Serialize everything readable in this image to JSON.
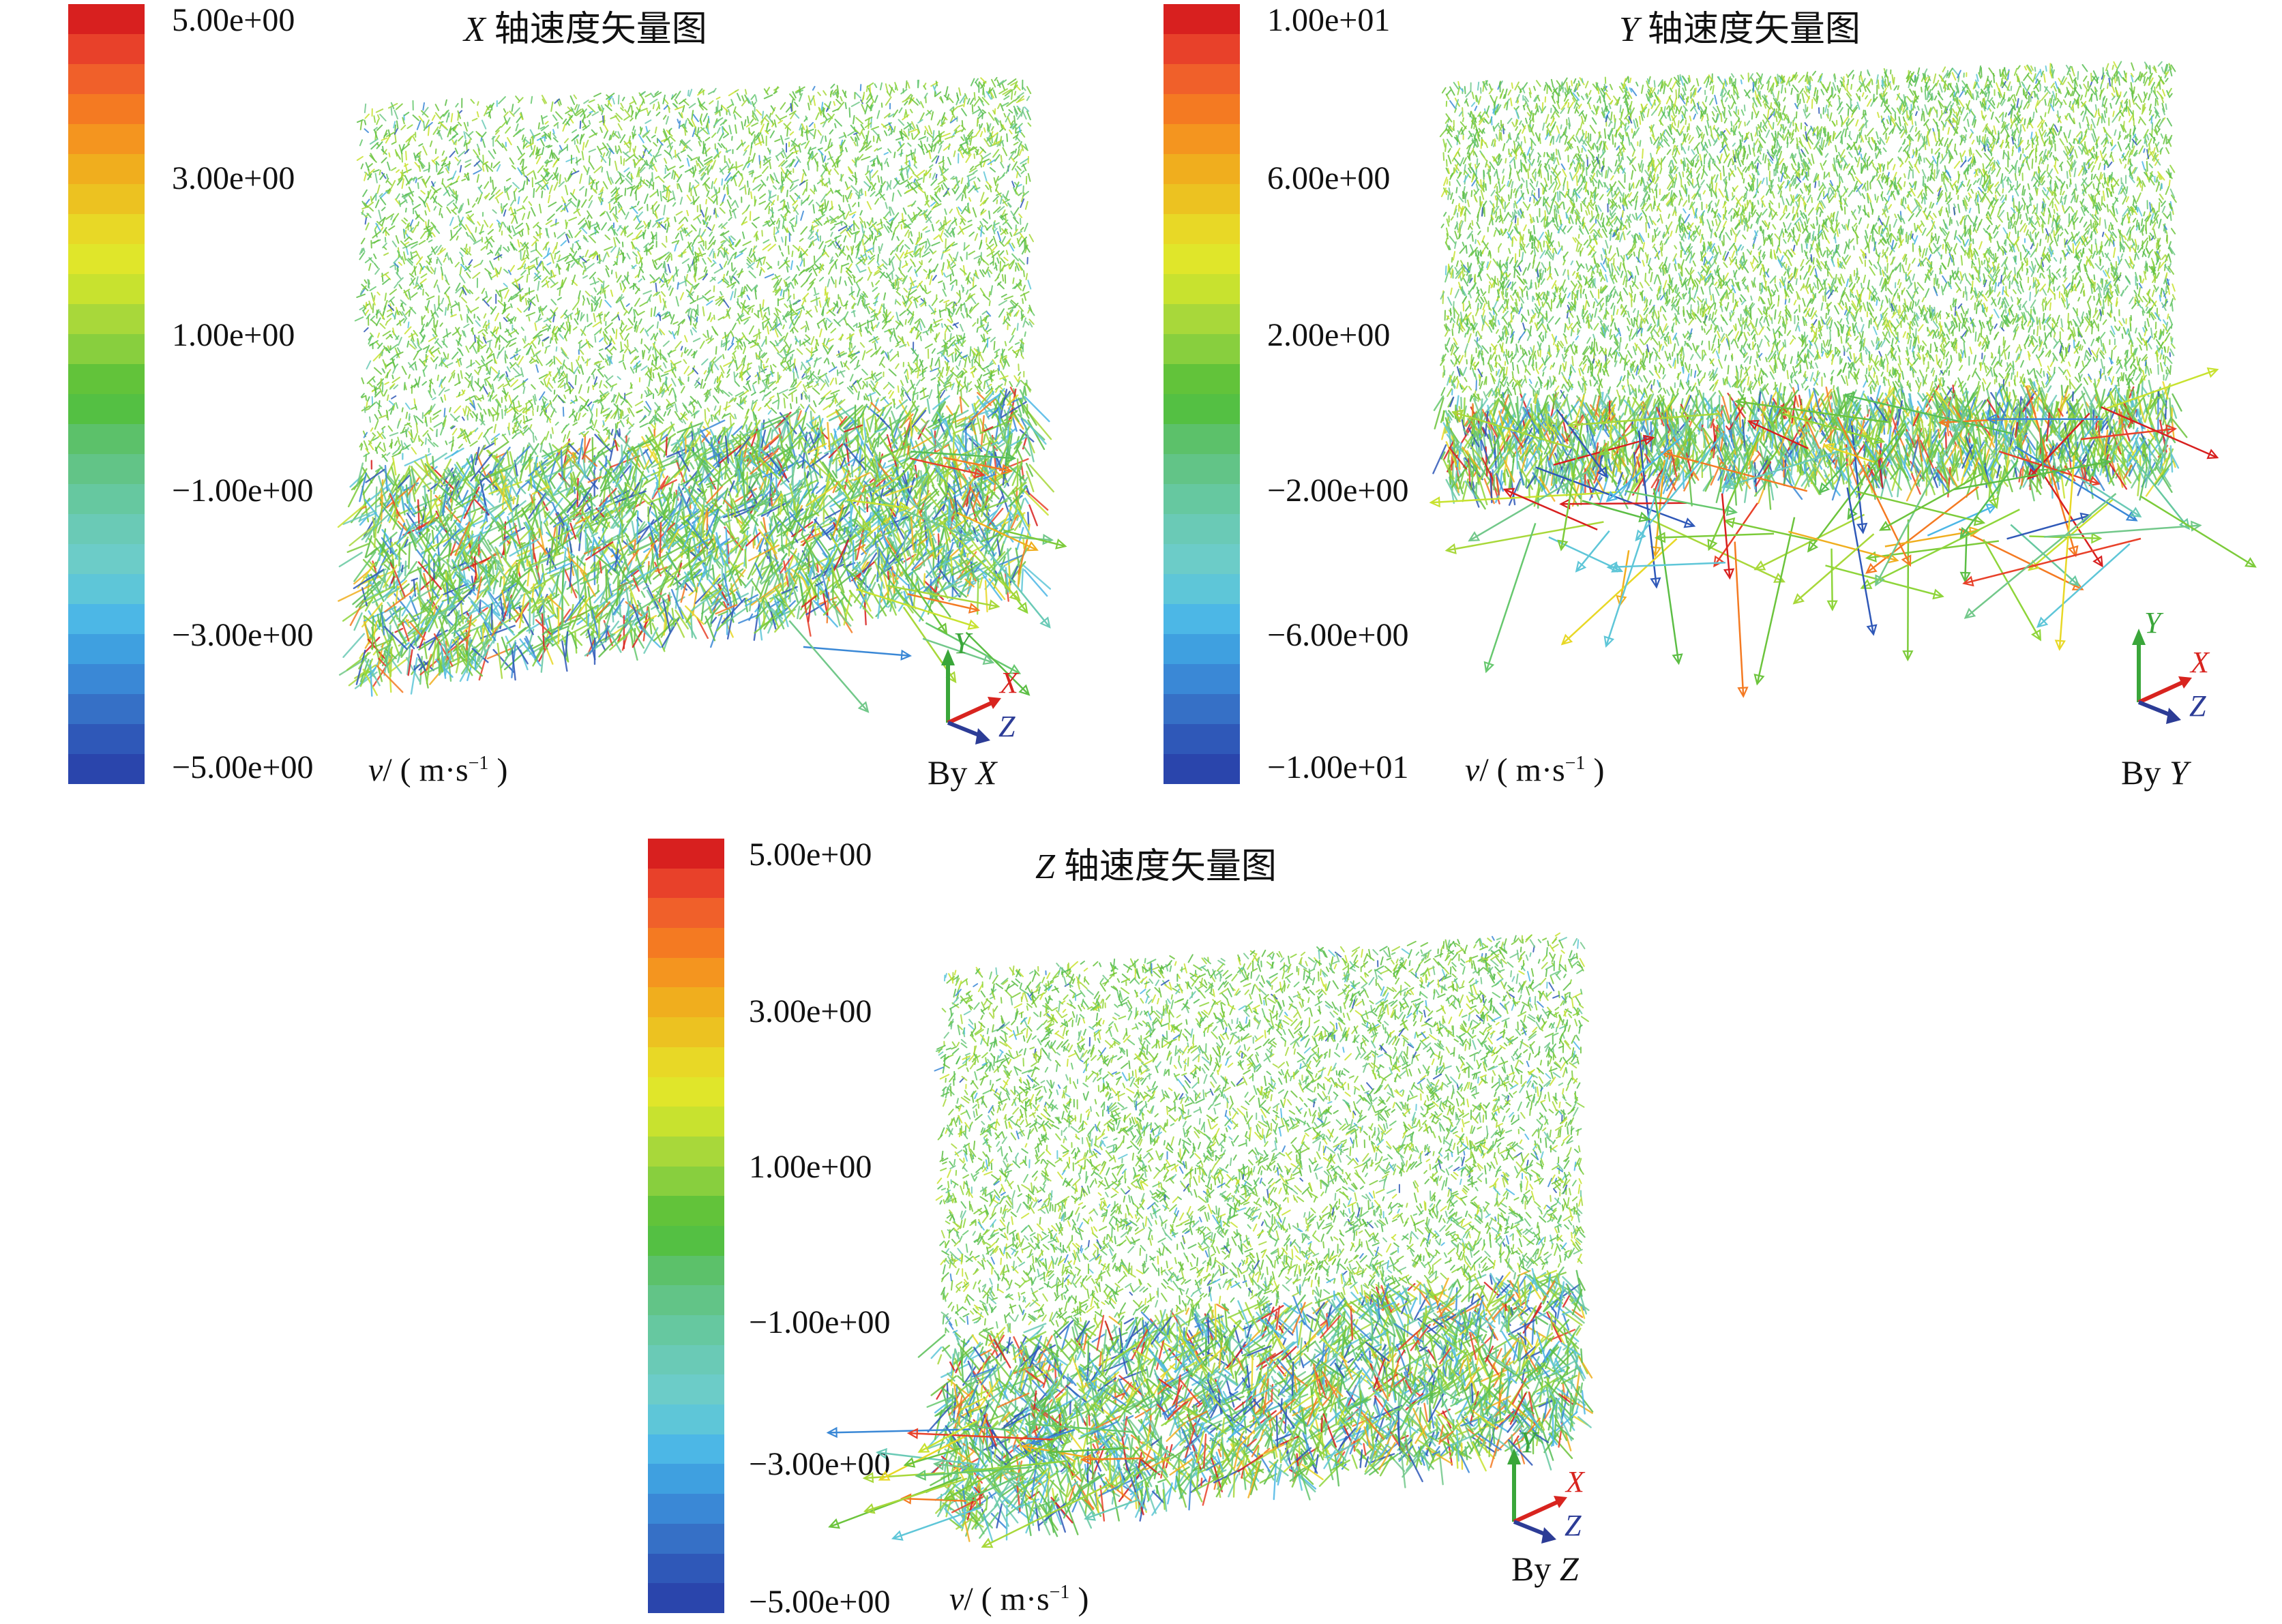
{
  "panels": [
    {
      "id": "x",
      "title_axis": "X",
      "title_text": "轴速度矢量图",
      "ticks": [
        "5.00e+00",
        "3.00e+00",
        "1.00e+00",
        "−1.00e+00",
        "−3.00e+00",
        "−5.00e+00"
      ],
      "unit_var": "v",
      "unit_text": "/ ( m·s",
      "unit_exp": "−1",
      "unit_close": " )",
      "by_prefix": "By ",
      "by_axis": "X"
    },
    {
      "id": "y",
      "title_axis": "Y",
      "title_text": "轴速度矢量图",
      "ticks": [
        "1.00e+01",
        "6.00e+00",
        "2.00e+00",
        "−2.00e+00",
        "−6.00e+00",
        "−1.00e+01"
      ],
      "unit_var": "v",
      "unit_text": "/ ( m·s",
      "unit_exp": "−1",
      "unit_close": " )",
      "by_prefix": "By ",
      "by_axis": "Y"
    },
    {
      "id": "z",
      "title_axis": "Z",
      "title_text": "轴速度矢量图",
      "ticks": [
        "5.00e+00",
        "3.00e+00",
        "1.00e+00",
        "−1.00e+00",
        "−3.00e+00",
        "−5.00e+00"
      ],
      "unit_var": "v",
      "unit_text": "/ ( m·s",
      "unit_exp": "−1",
      "unit_close": " )",
      "by_prefix": "By ",
      "by_axis": "Z"
    }
  ],
  "triad_labels": {
    "y": "Y",
    "x": "X",
    "z": "Z"
  },
  "colors": {
    "colormap": [
      "#d8201f",
      "#e8412a",
      "#f0602a",
      "#f47a22",
      "#f4951f",
      "#f0ae1e",
      "#ecc221",
      "#e8d826",
      "#e0e62a",
      "#c8e22f",
      "#a8d83a",
      "#88cf3e",
      "#62c33a",
      "#54c043",
      "#5cc16a",
      "#62c487",
      "#66c8a0",
      "#6acab6",
      "#6cccc8",
      "#5ec6d8",
      "#4cb7e6",
      "#3fa0e0",
      "#3a88d6",
      "#3670c6",
      "#2f58b8",
      "#2a45ac"
    ],
    "axis_y": "#3aa63a",
    "axis_x": "#d8241f",
    "axis_z": "#2c3c96"
  }
}
